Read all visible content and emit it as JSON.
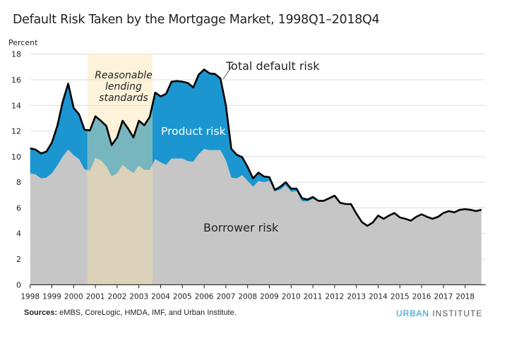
{
  "chart_data": {
    "type": "area",
    "title": "Default Risk Taken by the Mortgage Market, 1998Q1–2018Q4",
    "ylabel": "Percent",
    "xlabel": "",
    "ylim": [
      0,
      18
    ],
    "yticks": [
      0,
      2,
      4,
      6,
      8,
      10,
      12,
      14,
      16,
      18
    ],
    "xticks": [
      "1998",
      "1999",
      "2000",
      "2001",
      "2002",
      "2003",
      "2004",
      "2005",
      "2006",
      "2007",
      "2008",
      "2009",
      "2010",
      "2011",
      "2012",
      "2013",
      "2014",
      "2015",
      "2016",
      "2017",
      "2018"
    ],
    "x_start": "1998Q1",
    "x_end": "2018Q4",
    "frequency": "quarterly",
    "grid": "horizontal",
    "series": [
      {
        "name": "Borrower risk",
        "color": "#c6c6c6",
        "values": [
          8.7,
          8.6,
          8.3,
          8.35,
          8.7,
          9.3,
          10.0,
          10.55,
          10.1,
          9.8,
          9.0,
          8.9,
          9.9,
          9.7,
          9.25,
          8.45,
          8.7,
          9.35,
          9.0,
          8.7,
          9.3,
          8.95,
          8.95,
          9.8,
          9.55,
          9.35,
          9.85,
          9.85,
          9.85,
          9.65,
          9.6,
          10.2,
          10.6,
          10.5,
          10.5,
          10.5,
          9.7,
          8.35,
          8.3,
          8.55,
          8.1,
          7.65,
          8.1,
          8.0,
          8.1,
          7.3,
          7.4,
          7.75,
          7.25,
          7.3,
          6.5,
          6.5,
          6.7,
          6.5,
          6.5,
          6.7,
          6.85,
          6.35,
          6.3,
          6.25,
          5.5,
          4.8,
          4.5,
          4.8,
          5.35,
          5.05,
          5.35,
          5.55,
          5.2,
          5.1,
          4.95,
          5.25,
          5.45,
          5.25,
          5.1,
          5.25,
          5.55,
          5.7,
          5.6,
          5.8,
          5.85,
          5.8,
          5.7,
          5.8
        ]
      },
      {
        "name": "Product risk",
        "color": "#1b96d0",
        "values": [
          1.95,
          1.95,
          1.95,
          2.05,
          2.4,
          3.1,
          4.3,
          5.15,
          3.7,
          3.5,
          3.1,
          3.15,
          3.25,
          3.1,
          3.15,
          2.45,
          2.8,
          3.45,
          3.2,
          2.8,
          3.5,
          3.5,
          4.15,
          5.2,
          5.15,
          5.55,
          6.0,
          6.05,
          6.0,
          6.1,
          5.8,
          6.2,
          6.2,
          6.0,
          5.95,
          5.6,
          4.3,
          2.25,
          1.85,
          1.41,
          1.1,
          0.65,
          0.65,
          0.45,
          0.3,
          0.1,
          0.25,
          0.25,
          0.25,
          0.2,
          0.25,
          0.15,
          0.15,
          0.05,
          0.05,
          0.05,
          0.1,
          0.05,
          0.0,
          0.05,
          0.05,
          0.1,
          0.1,
          0.05,
          0.05,
          0.1,
          0.05,
          0.05,
          0.05,
          0.05,
          0.05,
          0.05,
          0.05,
          0.05,
          0.05,
          0.05,
          0.05,
          0.05,
          0.05,
          0.05,
          0.05,
          0.05,
          0.05,
          0.05
        ]
      },
      {
        "name": "Total default risk",
        "color": "#000000",
        "values": [
          10.65,
          10.55,
          10.25,
          10.4,
          11.1,
          12.4,
          14.3,
          15.7,
          13.8,
          13.3,
          12.1,
          12.05,
          13.15,
          12.8,
          12.4,
          10.9,
          11.5,
          12.8,
          12.2,
          11.5,
          12.8,
          12.45,
          13.1,
          15.0,
          14.7,
          14.9,
          15.85,
          15.9,
          15.85,
          15.75,
          15.4,
          16.4,
          16.8,
          16.5,
          16.45,
          16.1,
          14.0,
          10.6,
          10.15,
          9.96,
          9.2,
          8.3,
          8.75,
          8.45,
          8.4,
          7.4,
          7.65,
          8.0,
          7.5,
          7.5,
          6.75,
          6.65,
          6.85,
          6.55,
          6.55,
          6.75,
          6.95,
          6.4,
          6.3,
          6.3,
          5.55,
          4.9,
          4.6,
          4.85,
          5.4,
          5.15,
          5.4,
          5.6,
          5.25,
          5.15,
          5.0,
          5.3,
          5.5,
          5.3,
          5.15,
          5.3,
          5.6,
          5.75,
          5.65,
          5.85,
          5.9,
          5.85,
          5.75,
          5.85
        ]
      }
    ],
    "highlight": {
      "from": "2000Q4",
      "to": "2003Q3",
      "label": [
        "Reasonable",
        "lending",
        "standards"
      ],
      "color": "#fbe3a8"
    },
    "annotations": {
      "total": "Total default risk",
      "product": "Product risk",
      "borrower": "Borrower risk"
    }
  },
  "footer": {
    "sources_label": "Sources:",
    "sources_text": " eMBS, CoreLogic, HMDA, IMF, and Urban Institute.",
    "logo_urban": "URBAN",
    "logo_institute": " INSTITUTE"
  }
}
